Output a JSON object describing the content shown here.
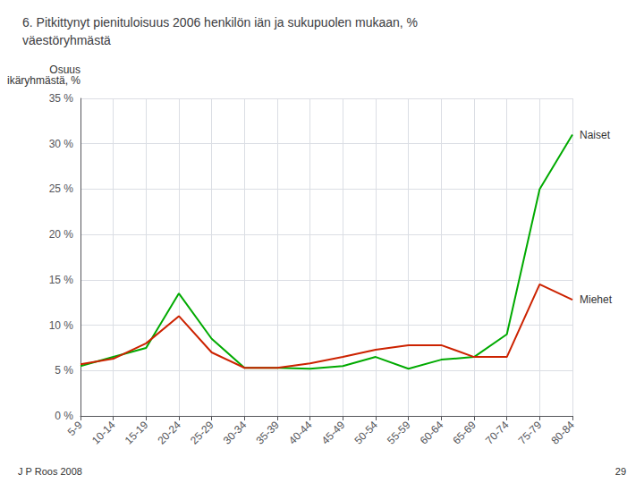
{
  "chart_data": {
    "type": "line",
    "title": "6. Pitkittynyt pienituloisuus 2006 henkilön iän ja sukupuolen mukaan, %\nväestöryhmästä",
    "ylabel": "Osuus\nikäryhmästä, %",
    "annotations": [
      "J P Roos 2008",
      "29"
    ],
    "categories": [
      "5-9",
      "10-14",
      "15-19",
      "20-24",
      "25-29",
      "30-34",
      "35-39",
      "40-44",
      "45-49",
      "50-54",
      "55-59",
      "60-64",
      "65-69",
      "70-74",
      "75-79",
      "80-84"
    ],
    "series": [
      {
        "name": "Naiset",
        "color": "#00aa00",
        "values": [
          5.5,
          6.5,
          7.5,
          13.5,
          8.5,
          5.3,
          5.3,
          5.2,
          5.5,
          6.5,
          5.2,
          6.2,
          6.5,
          9.0,
          25.0,
          31.0
        ]
      },
      {
        "name": "Miehet",
        "color": "#cc2200",
        "values": [
          5.7,
          6.3,
          8.0,
          11.0,
          7.0,
          5.3,
          5.3,
          5.8,
          6.5,
          7.3,
          7.8,
          7.8,
          6.5,
          6.5,
          14.5,
          12.8
        ]
      }
    ],
    "ylim": [
      0,
      35
    ],
    "yticks": [
      {
        "value": 0,
        "label": "0 %"
      },
      {
        "value": 5,
        "label": "5 %"
      },
      {
        "value": 10,
        "label": "10 %"
      },
      {
        "value": 15,
        "label": "15 %"
      },
      {
        "value": 20,
        "label": "20 %"
      },
      {
        "value": 25,
        "label": "25 %"
      },
      {
        "value": 30,
        "label": "30 %"
      },
      {
        "value": 35,
        "label": "35 %"
      }
    ],
    "grid": true
  }
}
